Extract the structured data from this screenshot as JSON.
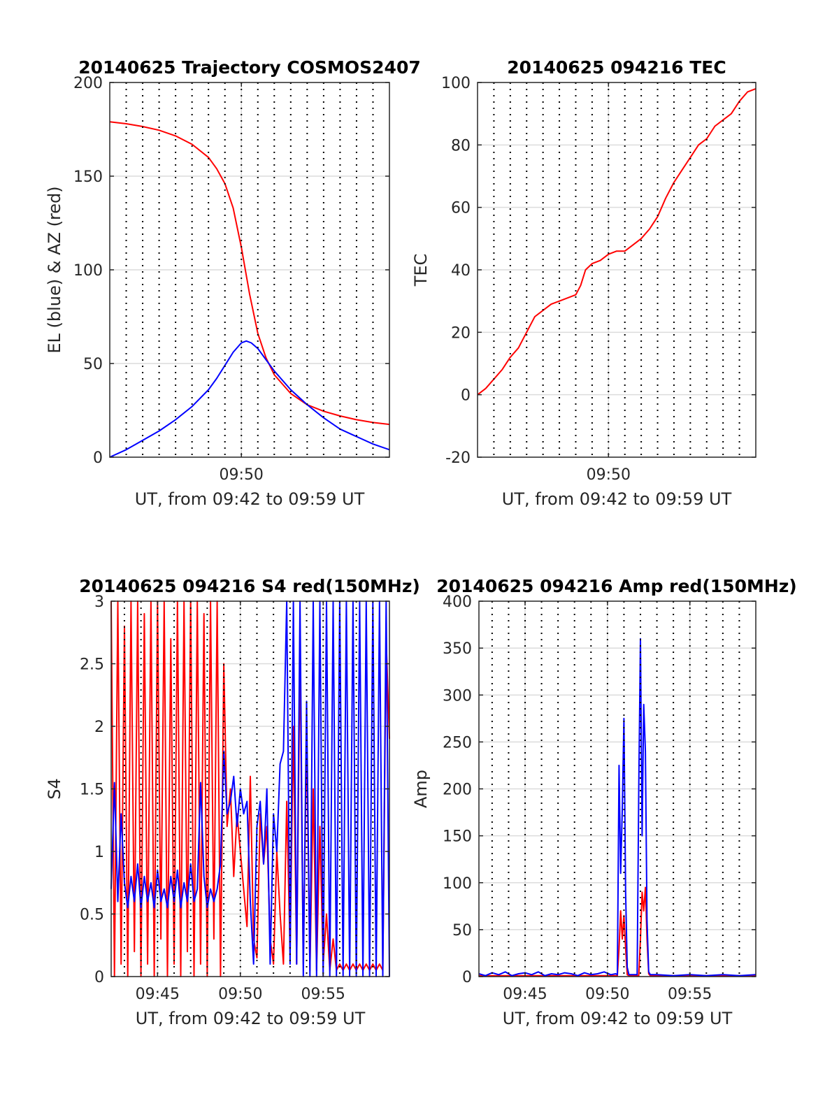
{
  "chart_data": [
    {
      "type": "line",
      "title": "20140625 Trajectory COSMOS2407",
      "xlabel": "UT, from 09:42 to 09:59 UT",
      "ylabel": "EL (blue) & AZ (red)",
      "xlim_min": [
        582.0,
        599.0
      ],
      "ylim": [
        0,
        200
      ],
      "yticks": [
        0,
        50,
        100,
        150,
        200
      ],
      "ytick_labels": [
        "0",
        "50",
        "100",
        "150",
        "200"
      ],
      "xtick_values": [
        590
      ],
      "xtick_labels": [
        "09:50"
      ],
      "grid": true,
      "colors": {
        "EL": "#0000ff",
        "AZ": "#ff0000"
      },
      "series": [
        {
          "name": "AZ",
          "color": "#ff0000",
          "x": [
            582.0,
            583.0,
            584.0,
            585.0,
            586.0,
            587.0,
            588.0,
            588.5,
            589.0,
            589.5,
            590.0,
            590.5,
            591.0,
            591.5,
            592.0,
            593.0,
            594.0,
            595.0,
            596.0,
            597.0,
            598.0,
            599.0
          ],
          "y": [
            179,
            178,
            176.5,
            174.5,
            171.5,
            167,
            160,
            154,
            146,
            133,
            112,
            87,
            66,
            53,
            44,
            34,
            28,
            24.5,
            22,
            20,
            18.5,
            17.5
          ]
        },
        {
          "name": "EL",
          "color": "#0000ff",
          "x": [
            582.0,
            583.0,
            584.0,
            585.0,
            586.0,
            587.0,
            588.0,
            588.5,
            589.0,
            589.5,
            590.0,
            590.3,
            590.6,
            591.0,
            591.5,
            592.0,
            593.0,
            594.0,
            595.0,
            596.0,
            597.0,
            598.0,
            599.0
          ],
          "y": [
            0,
            4,
            9,
            14,
            20,
            27,
            36,
            42,
            49,
            56,
            61,
            62,
            61,
            58,
            52,
            46,
            36,
            28,
            21,
            15,
            11,
            7,
            4
          ]
        }
      ]
    },
    {
      "type": "line",
      "title": "20140625 094216 TEC",
      "xlabel": "UT, from 09:42 to 09:59 UT",
      "ylabel": "TEC",
      "xlim_min": [
        582.0,
        599.0
      ],
      "ylim": [
        -20,
        100
      ],
      "yticks": [
        -20,
        0,
        20,
        40,
        60,
        80,
        100
      ],
      "ytick_labels": [
        "-20",
        "0",
        "20",
        "40",
        "60",
        "80",
        "100"
      ],
      "xtick_values": [
        590
      ],
      "xtick_labels": [
        "09:50"
      ],
      "grid": true,
      "series": [
        {
          "name": "TEC",
          "color": "#ff0000",
          "x": [
            582.0,
            582.5,
            583.0,
            583.5,
            584.0,
            584.5,
            585.0,
            585.5,
            586.0,
            586.5,
            587.0,
            587.5,
            588.0,
            588.3,
            588.6,
            589.0,
            589.5,
            590.0,
            590.5,
            591.0,
            591.5,
            592.0,
            592.5,
            593.0,
            593.5,
            594.0,
            594.5,
            595.0,
            595.5,
            596.0,
            596.5,
            597.0,
            597.5,
            598.0,
            598.5,
            599.0
          ],
          "y": [
            0,
            2,
            5,
            8,
            12,
            15,
            20,
            25,
            27,
            29,
            30,
            31,
            32,
            35,
            40,
            42,
            43,
            45,
            46,
            46,
            48,
            50,
            53,
            57,
            63,
            68,
            72,
            76,
            80,
            82,
            86,
            88,
            90,
            94,
            97,
            98
          ]
        }
      ]
    },
    {
      "type": "line",
      "title": "20140625 094216 S4 red(150MHz)",
      "xlabel": "UT, from 09:42 to 09:59 UT",
      "ylabel": "S4",
      "xlim_min": [
        582.2,
        599.0
      ],
      "ylim": [
        0,
        3
      ],
      "yticks": [
        0,
        0.5,
        1,
        1.5,
        2,
        2.5,
        3
      ],
      "ytick_labels": [
        "0",
        "0.5",
        "1",
        "1.5",
        "2",
        "2.5",
        "3"
      ],
      "xtick_values": [
        585,
        590,
        595
      ],
      "xtick_labels": [
        "09:45",
        "09:50",
        "09:55"
      ],
      "grid": true,
      "series": [
        {
          "name": "red (150MHz)",
          "color": "#ff0000",
          "x": [
            582.2,
            582.4,
            582.6,
            582.8,
            583.0,
            583.2,
            583.4,
            583.6,
            583.8,
            584.0,
            584.2,
            584.4,
            584.6,
            584.8,
            585.0,
            585.2,
            585.4,
            585.6,
            585.8,
            586.0,
            586.2,
            586.4,
            586.6,
            586.8,
            587.0,
            587.2,
            587.4,
            587.6,
            587.8,
            588.0,
            588.2,
            588.4,
            588.6,
            588.8,
            589.0,
            589.2,
            589.4,
            589.6,
            589.8,
            590.0,
            590.2,
            590.4,
            590.6,
            590.8,
            591.0,
            591.2,
            591.4,
            591.6,
            591.8,
            592.0,
            592.2,
            592.4,
            592.6,
            592.8,
            593.0,
            593.2,
            593.4,
            593.6,
            593.8,
            594.0,
            594.2,
            594.4,
            594.6,
            594.8,
            595.0,
            595.2,
            595.4,
            595.6,
            595.8,
            596.0,
            596.2,
            596.4,
            596.6,
            596.8,
            597.0,
            597.2,
            597.4,
            597.6,
            597.8,
            598.0,
            598.2,
            598.4,
            598.6,
            598.8,
            599.0
          ],
          "y": [
            3,
            0,
            3,
            0.1,
            2.8,
            0,
            3,
            0.2,
            3,
            0,
            2.9,
            0.1,
            3,
            0,
            3,
            0.3,
            3,
            0,
            2.7,
            0.1,
            3,
            0,
            3,
            0.2,
            3,
            0,
            3,
            0.1,
            2.9,
            0,
            3,
            0.3,
            3,
            0,
            2.5,
            1.2,
            1.5,
            0.8,
            1.3,
            1.0,
            0.7,
            0.4,
            1.6,
            0.3,
            0.15,
            1.3,
            0.9,
            1.2,
            0.3,
            0.1,
            1.0,
            0.5,
            0.1,
            1.4,
            0.2,
            2.0,
            0.1,
            2.6,
            0.1,
            1.9,
            0.05,
            1.5,
            0.05,
            1.2,
            0.1,
            0.5,
            0.05,
            0.3,
            0.05,
            0.1,
            0.05,
            0.1,
            0.05,
            0.1,
            0.05,
            0.1,
            0.05,
            0.1,
            0.05,
            0.1,
            0.05,
            0.1,
            0.05,
            2.7,
            1.9
          ]
        },
        {
          "name": "blue",
          "color": "#0000ff",
          "x": [
            582.2,
            582.4,
            582.6,
            582.8,
            583.0,
            583.2,
            583.4,
            583.6,
            583.8,
            584.0,
            584.2,
            584.4,
            584.6,
            584.8,
            585.0,
            585.2,
            585.4,
            585.6,
            585.8,
            586.0,
            586.2,
            586.4,
            586.6,
            586.8,
            587.0,
            587.2,
            587.4,
            587.6,
            587.8,
            588.0,
            588.2,
            588.4,
            588.6,
            588.8,
            589.0,
            589.2,
            589.4,
            589.6,
            589.8,
            590.0,
            590.2,
            590.4,
            590.6,
            590.8,
            591.0,
            591.2,
            591.4,
            591.6,
            591.8,
            592.0,
            592.2,
            592.4,
            592.6,
            592.8,
            593.0,
            593.2,
            593.4,
            593.6,
            593.8,
            594.0,
            594.2,
            594.4,
            594.6,
            594.8,
            595.0,
            595.2,
            595.4,
            595.6,
            595.8,
            596.0,
            596.2,
            596.4,
            596.6,
            596.8,
            597.0,
            597.2,
            597.4,
            597.6,
            597.8,
            598.0,
            598.2,
            598.4,
            598.6,
            598.8,
            599.0
          ],
          "y": [
            0.7,
            1.55,
            0.6,
            1.3,
            0.75,
            0.55,
            0.8,
            0.6,
            0.9,
            0.55,
            0.8,
            0.6,
            0.75,
            0.55,
            0.85,
            0.6,
            0.7,
            0.55,
            0.8,
            0.6,
            0.85,
            0.55,
            0.75,
            0.6,
            0.9,
            0.6,
            0.7,
            1.55,
            0.8,
            0.55,
            0.7,
            0.6,
            0.7,
            0.9,
            1.8,
            1.3,
            1.4,
            1.6,
            1.2,
            1.5,
            1.3,
            1.4,
            0.6,
            0.1,
            1.2,
            1.4,
            0.9,
            1.5,
            0.1,
            1.3,
            1.0,
            1.7,
            1.8,
            3,
            0.1,
            3,
            0.1,
            3,
            0,
            2.2,
            0,
            3,
            0,
            3,
            0,
            3,
            0,
            3,
            0,
            3,
            0,
            3,
            0,
            3,
            0,
            3,
            0,
            3,
            0,
            3,
            0,
            3,
            0,
            3,
            0
          ]
        }
      ]
    },
    {
      "type": "line",
      "title": "20140625 094216 Amp red(150MHz)",
      "xlabel": "UT, from 09:42 to 09:59 UT",
      "ylabel": "Amp",
      "xlim_min": [
        582.2,
        599.0
      ],
      "ylim": [
        0,
        400
      ],
      "yticks": [
        0,
        50,
        100,
        150,
        200,
        250,
        300,
        350,
        400
      ],
      "ytick_labels": [
        "0",
        "50",
        "100",
        "150",
        "200",
        "250",
        "300",
        "350",
        "400"
      ],
      "xtick_values": [
        585,
        590,
        595
      ],
      "xtick_labels": [
        "09:45",
        "09:50",
        "09:55"
      ],
      "grid": true,
      "series": [
        {
          "name": "red (150MHz)",
          "color": "#ff0000",
          "x": [
            582.2,
            588.0,
            590.6,
            590.7,
            590.8,
            590.9,
            591.0,
            591.1,
            591.2,
            591.3,
            591.9,
            592.0,
            592.1,
            592.2,
            592.3,
            592.4,
            592.5,
            592.6,
            599.0
          ],
          "y": [
            1,
            1,
            1,
            30,
            70,
            40,
            65,
            30,
            2,
            1,
            1,
            40,
            90,
            70,
            95,
            40,
            3,
            1,
            1
          ]
        },
        {
          "name": "blue",
          "color": "#0000ff",
          "x": [
            582.2,
            582.6,
            583.0,
            583.4,
            583.8,
            584.2,
            584.6,
            585.0,
            585.4,
            585.8,
            586.2,
            586.6,
            587.0,
            587.4,
            587.8,
            588.2,
            588.6,
            589.0,
            589.4,
            589.8,
            590.2,
            590.5,
            590.6,
            590.7,
            590.8,
            590.9,
            591.0,
            591.1,
            591.2,
            591.3,
            591.8,
            591.9,
            592.0,
            592.1,
            592.2,
            592.3,
            592.4,
            592.5,
            592.6,
            593.0,
            594.0,
            595.0,
            596.0,
            597.0,
            598.0,
            599.0
          ],
          "y": [
            3,
            1,
            4,
            2,
            5,
            1,
            3,
            4,
            2,
            5,
            1,
            3,
            2,
            4,
            3,
            1,
            4,
            2,
            3,
            5,
            2,
            3,
            2,
            225,
            110,
            180,
            275,
            90,
            10,
            2,
            2,
            200,
            360,
            150,
            290,
            240,
            60,
            5,
            2,
            2,
            1,
            2,
            1,
            2,
            1,
            2
          ]
        }
      ]
    }
  ]
}
